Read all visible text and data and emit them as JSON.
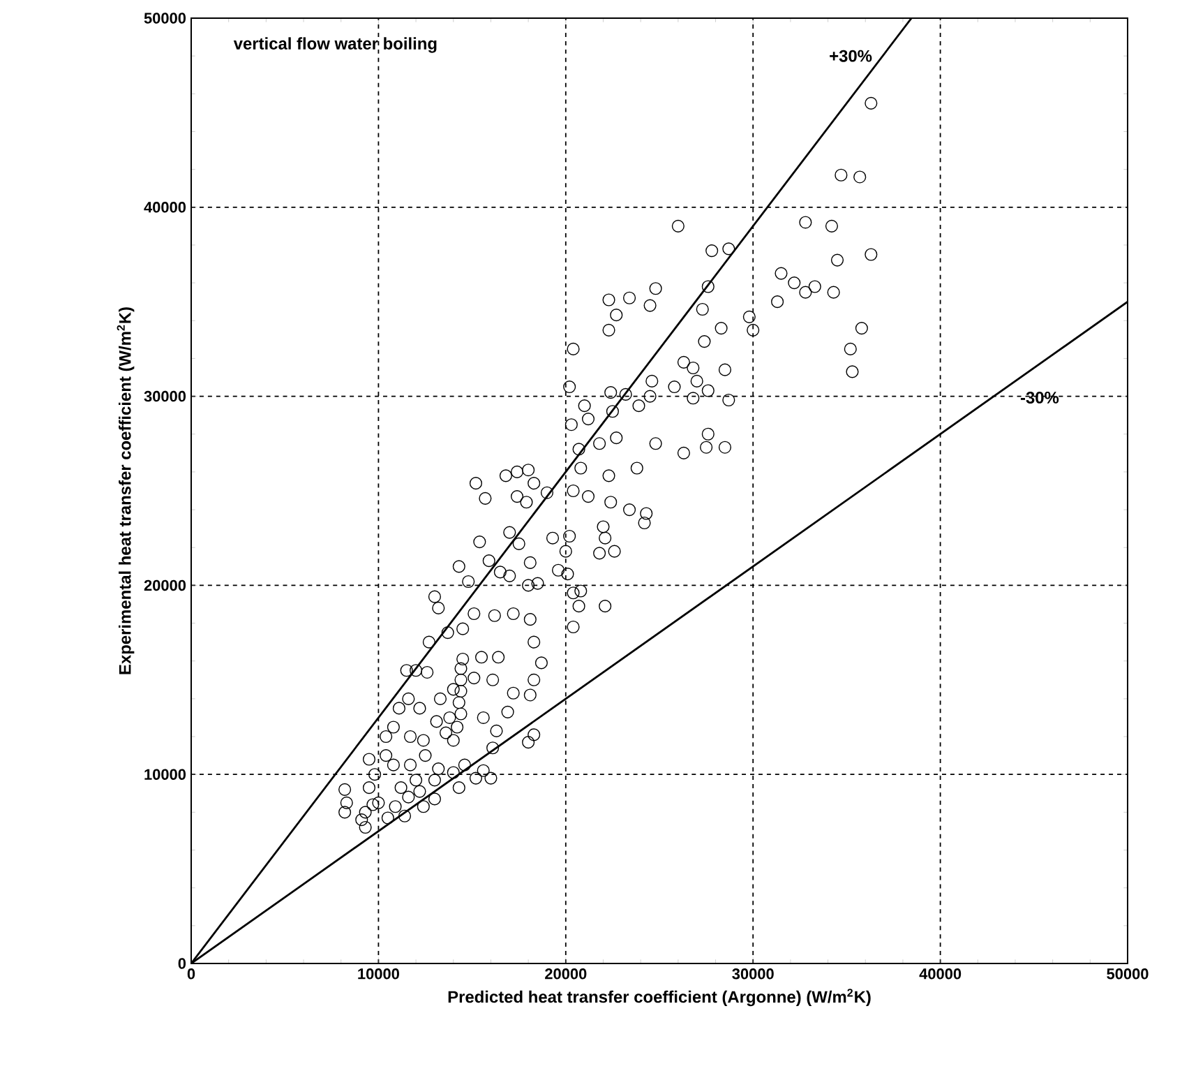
{
  "chart_data": {
    "type": "scatter",
    "xlabel": "Predicted heat transfer coefficient (Argonne) (W/m$^{2}$K)",
    "ylabel": "Experimental heat transfer coefficient (W/m$^{2}$K)",
    "xlim": [
      0,
      50000
    ],
    "ylim": [
      0,
      50000
    ],
    "xticks": [
      0,
      10000,
      20000,
      30000,
      40000,
      50000
    ],
    "yticks": [
      0,
      10000,
      20000,
      30000,
      40000,
      50000
    ],
    "grid": true,
    "marker": "circle",
    "annotations": [
      "vertical flow water boiling",
      "+30%",
      "-30%"
    ],
    "series": [
      {
        "color": "#000000",
        "x": [
          36300,
          34700,
          35700,
          32800,
          34200,
          36300,
          34500,
          31500,
          32200,
          33300,
          32800,
          34300,
          31300,
          27800,
          28700,
          26000,
          29800,
          30000,
          35800,
          35200,
          35300,
          27600,
          27300,
          24800,
          24500,
          22300,
          22700,
          23400,
          22300,
          28300,
          27400,
          26300,
          25800,
          26800,
          28500,
          27000,
          27600,
          26800,
          28700,
          24600,
          24500,
          23900,
          22400,
          23200,
          22500,
          20400,
          20200,
          21000,
          20300,
          21200,
          21800,
          22700,
          24800,
          23800,
          22300,
          20700,
          20800,
          26300,
          27500,
          27600,
          28500,
          23400,
          24300,
          24200,
          22400,
          22000,
          20400,
          21200,
          22100,
          22600,
          21800,
          22100,
          20200,
          20000,
          20100,
          20400,
          20800,
          20700,
          20400,
          19600,
          19300,
          19000,
          18300,
          18000,
          17400,
          16800,
          15200,
          15700,
          17400,
          17900,
          17000,
          17500,
          18100,
          18500,
          18000,
          17000,
          16500,
          15900,
          15400,
          14300,
          14800,
          13000,
          13200,
          13700,
          14500,
          15100,
          16200,
          17200,
          18100,
          18300,
          18700,
          18300,
          18100,
          18300,
          18000,
          17200,
          16900,
          16400,
          16100,
          15500,
          15100,
          14500,
          14400,
          14400,
          14400,
          14300,
          14400,
          14200,
          13800,
          13600,
          12700,
          12600,
          12000,
          11500,
          12200,
          11600,
          11100,
          10800,
          11700,
          12400,
          10400,
          10800,
          11700,
          12500,
          13200,
          14000,
          14600,
          15600,
          16000,
          16100,
          16300,
          15600,
          13000,
          12000,
          11200,
          11600,
          12200,
          10900,
          10000,
          9500,
          9700,
          9300,
          9100,
          9300,
          8200,
          8300,
          8200,
          10500,
          11400,
          12400,
          13000,
          14300,
          15200,
          10400,
          9800,
          9500,
          14000,
          13100,
          14000,
          13300
        ],
        "values": [
          45500,
          41700,
          41600,
          39200,
          39000,
          37500,
          37200,
          36500,
          36000,
          35800,
          35500,
          35500,
          35000,
          37700,
          37800,
          39000,
          34200,
          33500,
          33600,
          32500,
          31300,
          35800,
          34600,
          35700,
          34800,
          35100,
          34300,
          35200,
          33500,
          33600,
          32900,
          31800,
          30500,
          31500,
          31400,
          30800,
          30300,
          29900,
          29800,
          30800,
          30000,
          29500,
          30200,
          30100,
          29200,
          32500,
          30500,
          29500,
          28500,
          28800,
          27500,
          27800,
          27500,
          26200,
          25800,
          27200,
          26200,
          27000,
          27300,
          28000,
          27300,
          24000,
          23800,
          23300,
          24400,
          23100,
          25000,
          24700,
          22500,
          21800,
          21700,
          18900,
          22600,
          21800,
          20600,
          19600,
          19700,
          18900,
          17800,
          20800,
          22500,
          24900,
          25400,
          26100,
          26000,
          25800,
          25400,
          24600,
          24700,
          24400,
          22800,
          22200,
          21200,
          20100,
          20000,
          20500,
          20700,
          21300,
          22300,
          21000,
          20200,
          19400,
          18800,
          17500,
          17700,
          18500,
          18400,
          18500,
          18200,
          17000,
          15900,
          15000,
          14200,
          12100,
          11700,
          14300,
          13300,
          16200,
          15000,
          16200,
          15100,
          16100,
          15600,
          15000,
          14400,
          13800,
          13200,
          12500,
          13000,
          12200,
          17000,
          15400,
          15500,
          15500,
          13500,
          14000,
          13500,
          12500,
          12000,
          11800,
          11000,
          10500,
          10500,
          11000,
          10300,
          10100,
          10500,
          10200,
          9800,
          11400,
          12300,
          13000,
          9700,
          9700,
          9300,
          8800,
          9100,
          8300,
          8500,
          9300,
          8400,
          8000,
          7600,
          7200,
          9200,
          8500,
          8000,
          7700,
          7800,
          8300,
          8700,
          9300,
          9800,
          12000,
          10000,
          10800,
          11800,
          12800,
          14500,
          14000
        ]
      },
      {
        "type": "line",
        "color": "#000000",
        "marker": "none",
        "line_style": "solid",
        "x": [
          0,
          38460
        ],
        "values": [
          0,
          50000
        ]
      },
      {
        "type": "line",
        "color": "#000000",
        "marker": "none",
        "line_style": "solid",
        "x": [
          0,
          50000
        ],
        "values": [
          0,
          35000
        ]
      }
    ]
  }
}
